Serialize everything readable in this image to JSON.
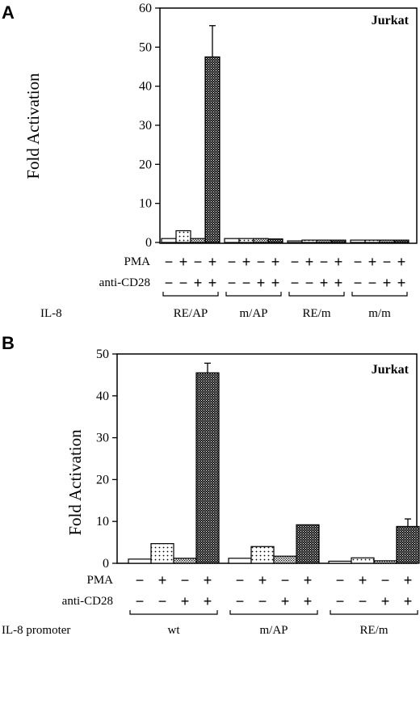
{
  "chart_data": [
    {
      "type": "bar",
      "panel": "A",
      "title": "Jurkat",
      "ylabel": "Fold Activation",
      "ylim": [
        0,
        60
      ],
      "yticks": [
        0,
        10,
        20,
        30,
        40,
        50,
        60
      ],
      "row_labels": {
        "pma": "PMA",
        "anti_cd28": "anti-CD28",
        "group": "IL-8"
      },
      "pma": [
        "−",
        "+",
        "−",
        "+"
      ],
      "anti_cd28": [
        "−",
        "−",
        "+",
        "+"
      ],
      "groups": [
        {
          "label": "RE/AP",
          "values": [
            1,
            3,
            1,
            47.5
          ],
          "errors": [
            0,
            0,
            0,
            8
          ]
        },
        {
          "label": "m/AP",
          "values": [
            1,
            1,
            1,
            0.9
          ],
          "errors": [
            0,
            0,
            0,
            0
          ]
        },
        {
          "label": "RE/m",
          "values": [
            0.4,
            0.6,
            0.6,
            0.6
          ],
          "errors": [
            0,
            0,
            0,
            0
          ]
        },
        {
          "label": "m/m",
          "values": [
            0.6,
            0.6,
            0.6,
            0.6
          ],
          "errors": [
            0,
            0,
            0,
            0
          ]
        }
      ]
    },
    {
      "type": "bar",
      "panel": "B",
      "title": "Jurkat",
      "ylabel": "Fold Activation",
      "ylim": [
        0,
        50
      ],
      "yticks": [
        0,
        10,
        20,
        30,
        40,
        50
      ],
      "row_labels": {
        "pma": "PMA",
        "anti_cd28": "anti-CD28",
        "group": "IL-8 promoter"
      },
      "pma": [
        "−",
        "+",
        "−",
        "+"
      ],
      "anti_cd28": [
        "−",
        "−",
        "+",
        "+"
      ],
      "groups": [
        {
          "label": "wt",
          "values": [
            1,
            4.7,
            1.2,
            45.5
          ],
          "errors": [
            0,
            0,
            0,
            2.3
          ]
        },
        {
          "label": "m/AP",
          "values": [
            1.2,
            4,
            1.7,
            9.2
          ],
          "errors": [
            0,
            0,
            0,
            0
          ]
        },
        {
          "label": "RE/m",
          "values": [
            0.5,
            1.3,
            0.6,
            8.8
          ],
          "errors": [
            0,
            0,
            0,
            1.8
          ]
        }
      ]
    }
  ]
}
